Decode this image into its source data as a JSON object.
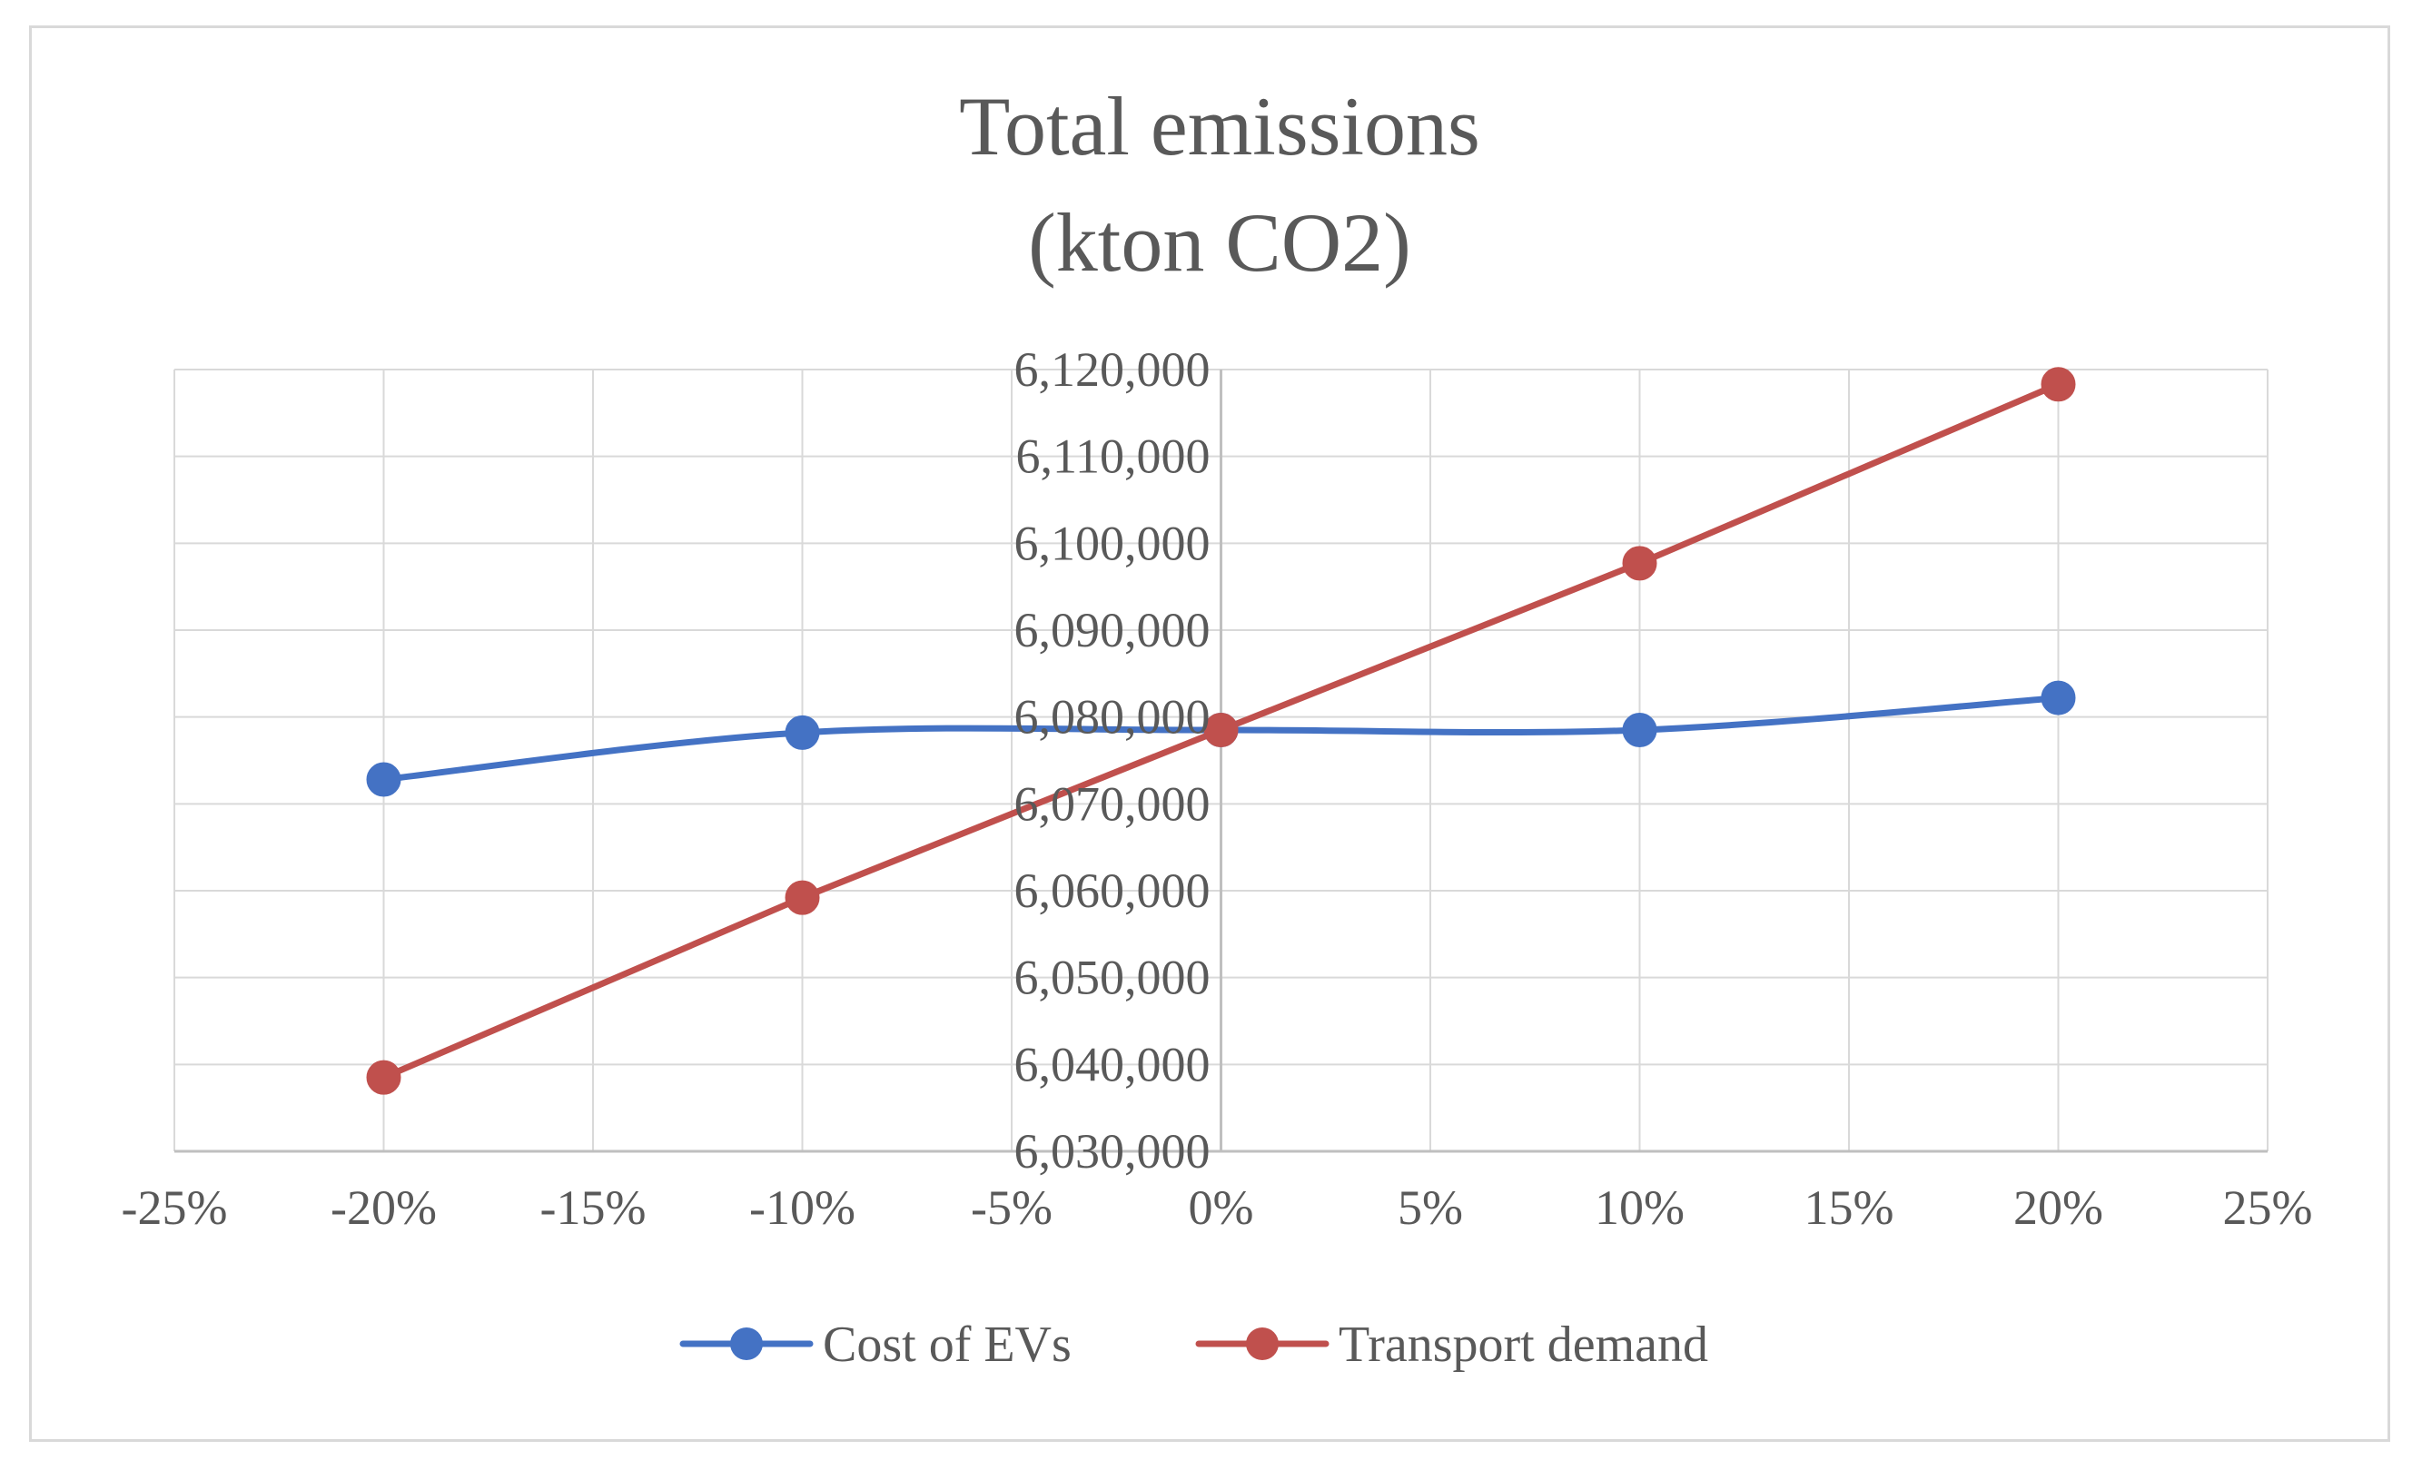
{
  "chart_data": {
    "type": "line",
    "title": [
      "Total emissions",
      "(kton CO2)"
    ],
    "xlabel": "",
    "ylabel": "",
    "xlim": [
      -0.25,
      0.25
    ],
    "ylim": [
      6030000,
      6120000
    ],
    "x_ticks": [
      -0.25,
      -0.2,
      -0.15,
      -0.1,
      -0.05,
      0,
      0.05,
      0.1,
      0.15,
      0.2,
      0.25
    ],
    "x_tick_labels": [
      "-25%",
      "-20%",
      "-15%",
      "-10%",
      "-5%",
      "0%",
      "5%",
      "10%",
      "15%",
      "20%",
      "25%"
    ],
    "y_ticks": [
      6030000,
      6040000,
      6050000,
      6060000,
      6070000,
      6080000,
      6090000,
      6100000,
      6110000,
      6120000
    ],
    "y_tick_labels": [
      "6,030,000",
      "6,040,000",
      "6,050,000",
      "6,060,000",
      "6,070,000",
      "6,080,000",
      "6,090,000",
      "6,100,000",
      "6,110,000",
      "6,120,000"
    ],
    "grid": true,
    "legend_position": "bottom",
    "series": [
      {
        "name": "Cost of EVs",
        "color": "#4472c4",
        "smooth": true,
        "x": [
          -0.2,
          -0.1,
          0,
          0.1,
          0.2
        ],
        "y": [
          6072800,
          6078200,
          6078500,
          6078500,
          6082200
        ]
      },
      {
        "name": "Transport demand",
        "color": "#c0504d",
        "smooth": false,
        "x": [
          -0.2,
          -0.1,
          0,
          0.1,
          0.2
        ],
        "y": [
          6038500,
          6059200,
          6078500,
          6097700,
          6118300
        ]
      }
    ]
  }
}
